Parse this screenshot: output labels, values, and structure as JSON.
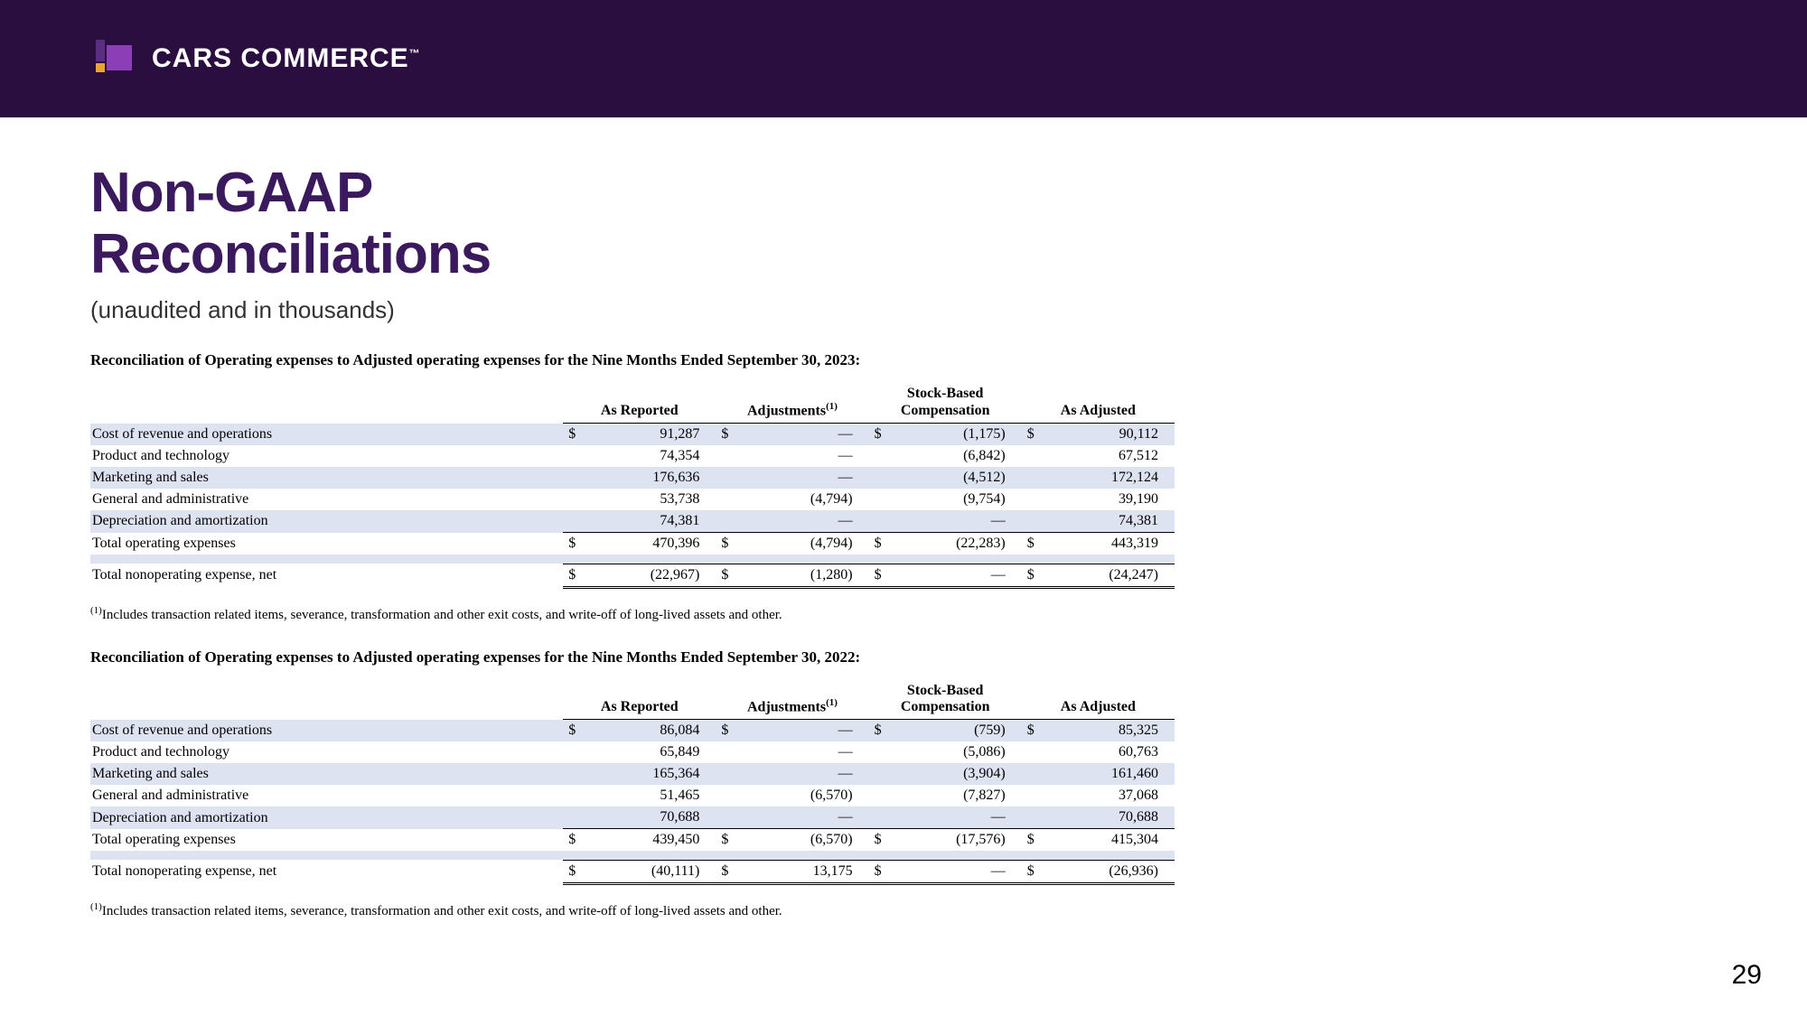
{
  "brand": {
    "name": "CARS COMMERCE",
    "tm": "™"
  },
  "title_line1": "Non-GAAP",
  "title_line2": "Reconciliations",
  "subtitle": "(unaudited and in thousands)",
  "page_number": "29",
  "colors": {
    "header_bg": "#2a0e3f",
    "title_color": "#3a1a5c",
    "row_shade": "#dde3f0",
    "logo_purple": "#8b3eb5",
    "logo_darkpurple": "#5a2d82",
    "logo_orange": "#e8a33d"
  },
  "columns": {
    "c1": "As Reported",
    "c2_pre": "Adjustments",
    "c2_sup": "(1)",
    "c3_l1": "Stock-Based",
    "c3_l2": "Compensation",
    "c4": "As Adjusted"
  },
  "footnote_sup": "(1)",
  "footnote_text": "Includes transaction related items, severance, transformation and other exit costs, and write-off of long-lived assets and other.",
  "table1": {
    "heading": "Reconciliation of Operating expenses to Adjusted operating expenses for the Nine Months Ended September 30, 2023:",
    "rows": [
      {
        "label": "Cost of revenue and operations",
        "c1": "91,287",
        "c2": "—",
        "c3": "(1,175)",
        "c4": "90,112",
        "shade": true,
        "cur": true
      },
      {
        "label": "Product and technology",
        "c1": "74,354",
        "c2": "—",
        "c3": "(6,842)",
        "c4": "67,512"
      },
      {
        "label": "Marketing and sales",
        "c1": "176,636",
        "c2": "—",
        "c3": "(4,512)",
        "c4": "172,124",
        "shade": true
      },
      {
        "label": "General and administrative",
        "c1": "53,738",
        "c2": "(4,794)",
        "c3": "(9,754)",
        "c4": "39,190"
      },
      {
        "label": "Depreciation and amortization",
        "c1": "74,381",
        "c2": "—",
        "c3": "—",
        "c4": "74,381",
        "shade": true
      }
    ],
    "total": {
      "label": "Total operating expenses",
      "c1": "470,396",
      "c2": "(4,794)",
      "c3": "(22,283)",
      "c4": "443,319"
    },
    "nonop": {
      "label": "Total nonoperating expense, net",
      "c1": "(22,967)",
      "c2": "(1,280)",
      "c3": "—",
      "c4": "(24,247)"
    }
  },
  "table2": {
    "heading": "Reconciliation of Operating expenses to Adjusted operating expenses for the Nine Months Ended September 30, 2022:",
    "rows": [
      {
        "label": "Cost of revenue and operations",
        "c1": "86,084",
        "c2": "—",
        "c3": "(759)",
        "c4": "85,325",
        "shade": true,
        "cur": true
      },
      {
        "label": "Product and technology",
        "c1": "65,849",
        "c2": "—",
        "c3": "(5,086)",
        "c4": "60,763"
      },
      {
        "label": "Marketing and sales",
        "c1": "165,364",
        "c2": "—",
        "c3": "(3,904)",
        "c4": "161,460",
        "shade": true
      },
      {
        "label": "General and administrative",
        "c1": "51,465",
        "c2": "(6,570)",
        "c3": "(7,827)",
        "c4": "37,068"
      },
      {
        "label": "Depreciation and amortization",
        "c1": "70,688",
        "c2": "—",
        "c3": "—",
        "c4": "70,688",
        "shade": true
      }
    ],
    "total": {
      "label": "Total operating expenses",
      "c1": "439,450",
      "c2": "(6,570)",
      "c3": "(17,576)",
      "c4": "415,304"
    },
    "nonop": {
      "label": "Total nonoperating expense, net",
      "c1": "(40,111)",
      "c2": "13,175",
      "c3": "—",
      "c4": "(26,936)"
    }
  }
}
